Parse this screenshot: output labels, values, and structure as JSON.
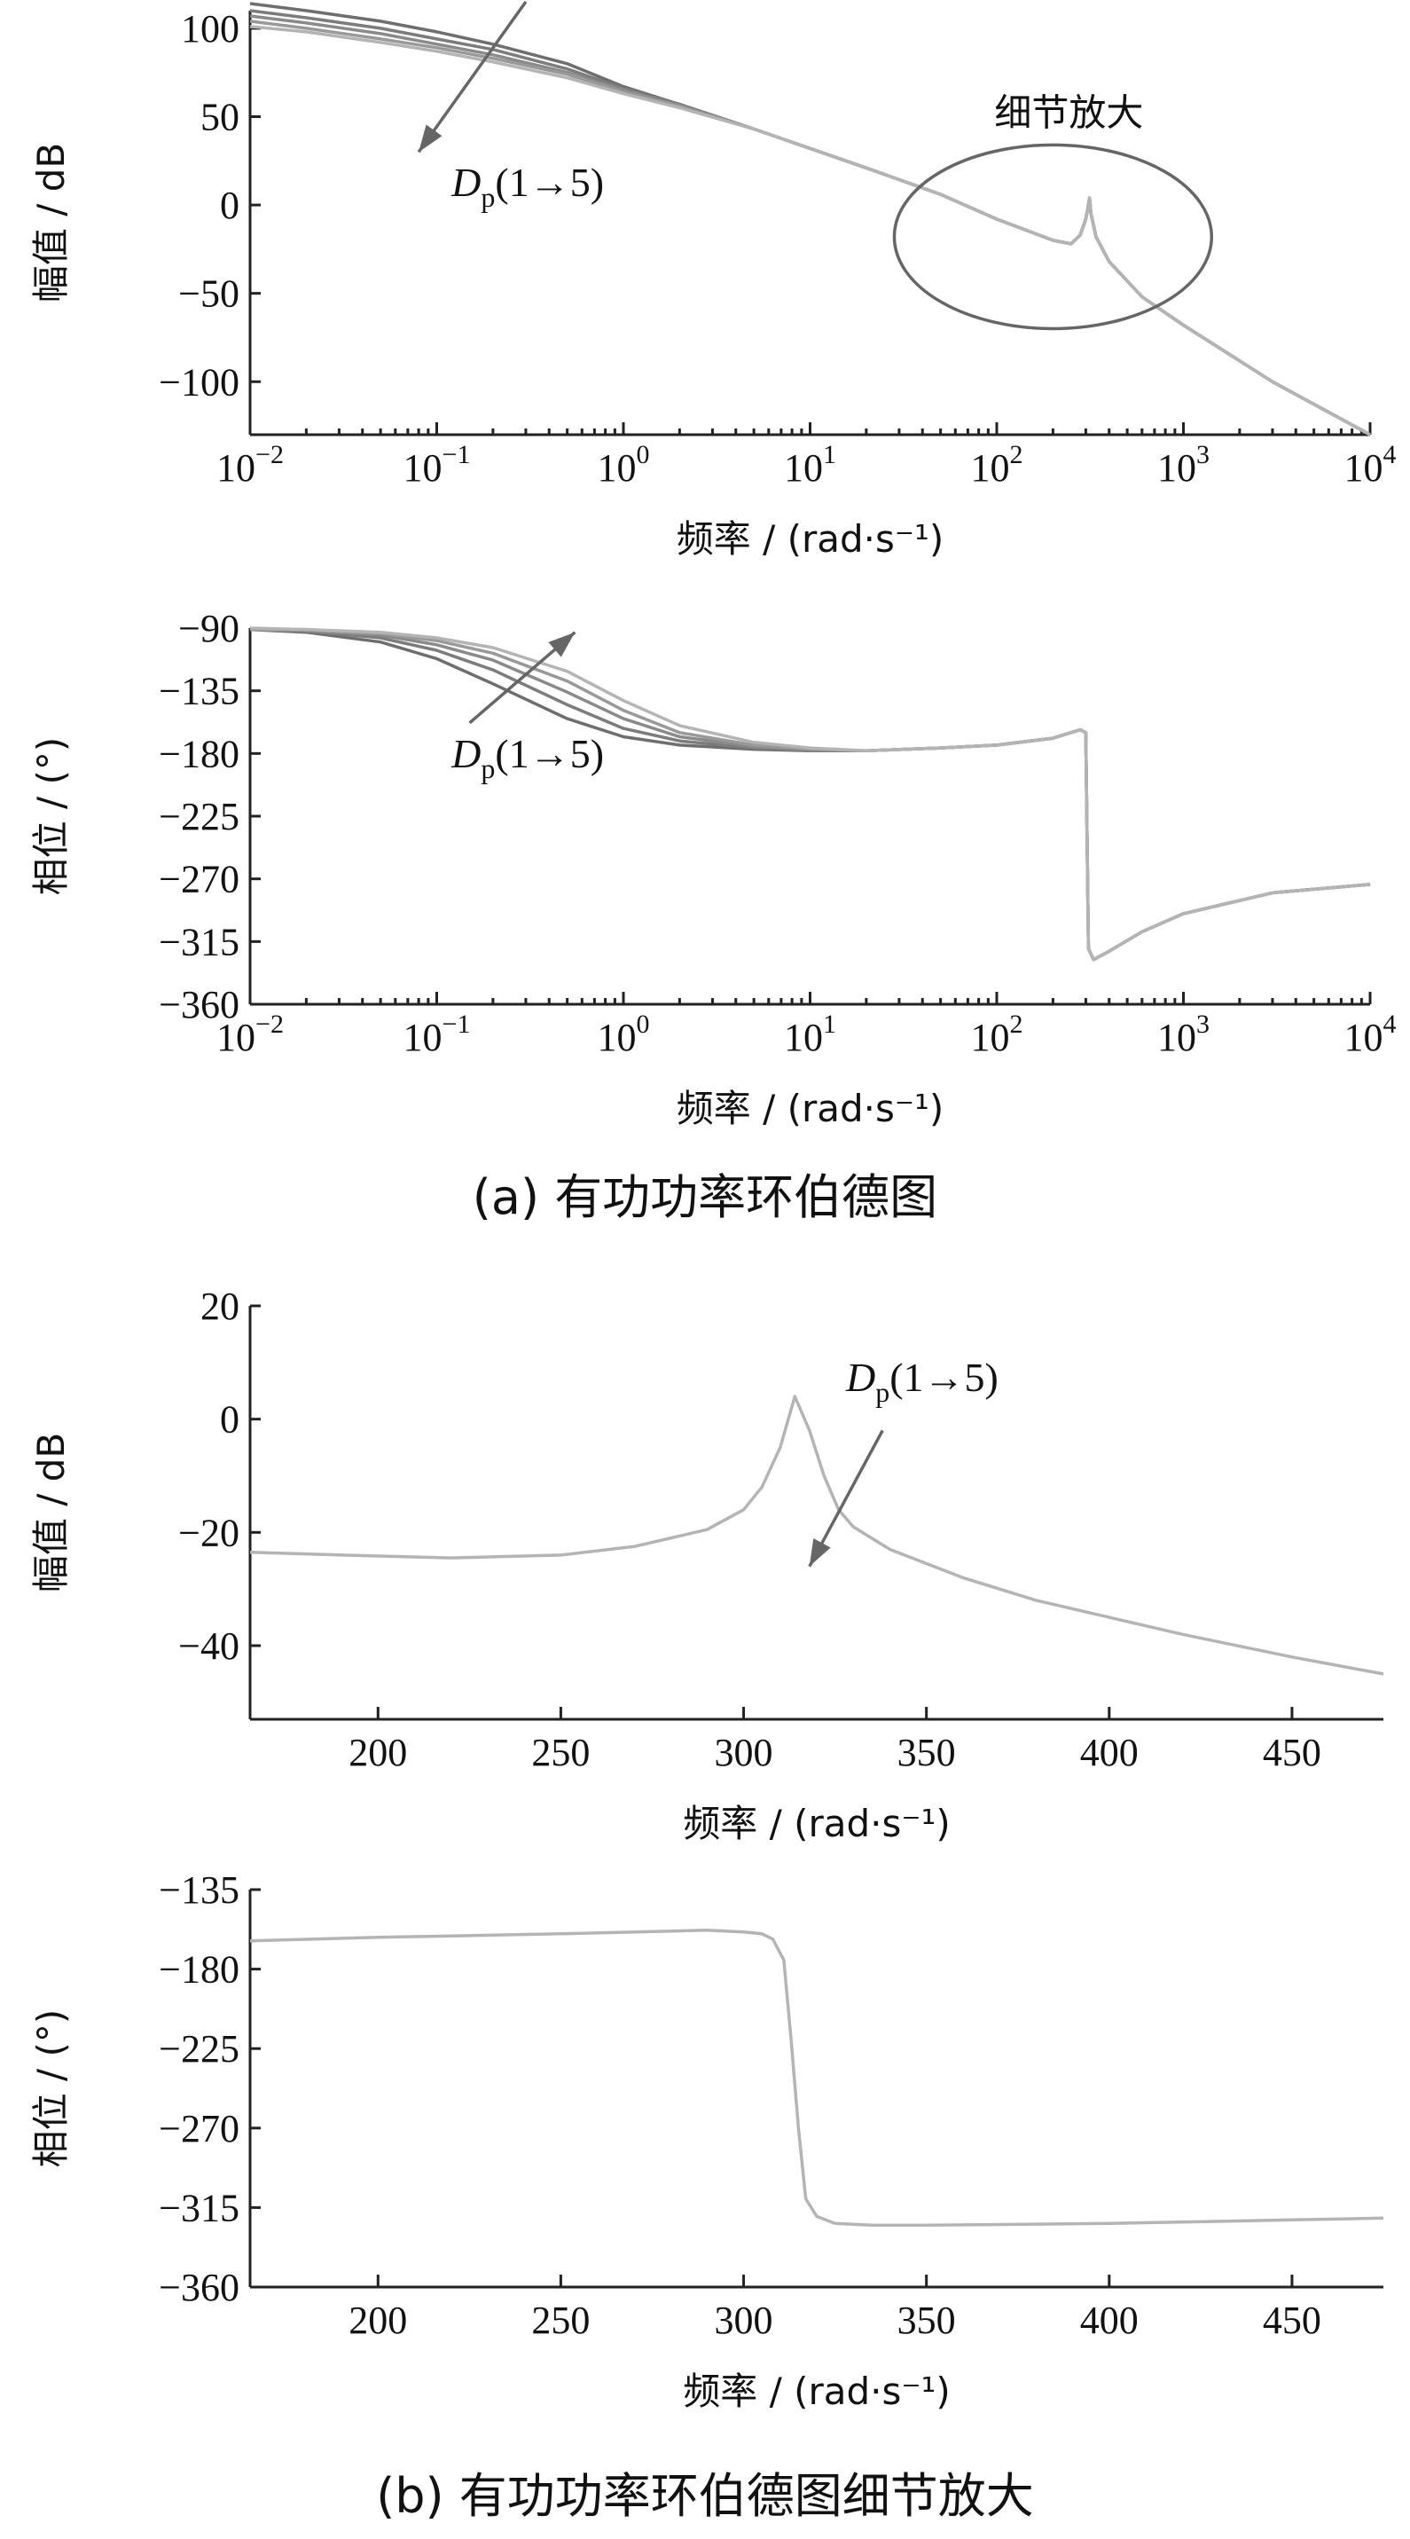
{
  "chart_data": [
    {
      "type": "line",
      "panel": "a",
      "subplot": "magnitude",
      "xscale": "log",
      "xlim": [
        0.01,
        10000
      ],
      "ylim": [
        -130,
        110
      ],
      "xlabel": "频率 / (rad·s⁻¹)",
      "ylabel": "幅值 / dB",
      "xticks": [
        0.01,
        0.1,
        1,
        10,
        100,
        1000,
        10000
      ],
      "xtick_labels": [
        {
          "base": "10",
          "exp": "−2"
        },
        {
          "base": "10",
          "exp": "−1"
        },
        {
          "base": "10",
          "exp": "0"
        },
        {
          "base": "10",
          "exp": "1"
        },
        {
          "base": "10",
          "exp": "2"
        },
        {
          "base": "10",
          "exp": "3"
        },
        {
          "base": "10",
          "exp": "4"
        }
      ],
      "yticks": [
        100,
        50,
        0,
        -50,
        -100
      ],
      "ytick_labels": [
        "100",
        "50",
        "0",
        "−50",
        "−100"
      ],
      "grid": false,
      "series": [
        {
          "color": "#6e6e6e",
          "x": [
            0.01,
            0.02,
            0.05,
            0.1,
            0.2,
            0.5,
            1,
            2,
            5,
            10,
            20,
            50,
            100,
            150,
            200,
            250,
            280,
            300,
            310,
            314,
            320,
            340,
            400,
            600,
            1000,
            3000,
            10000
          ],
          "y": [
            114,
            110,
            104,
            98,
            91,
            80,
            67,
            57,
            43,
            32,
            21,
            6,
            -8,
            -15,
            -20,
            -22,
            -17,
            -8,
            0,
            4,
            -5,
            -18,
            -32,
            -52,
            -68,
            -100,
            -130
          ]
        },
        {
          "color": "#7c7c7c",
          "x": [
            0.01,
            0.02,
            0.05,
            0.1,
            0.2,
            0.5,
            1,
            2,
            5,
            10,
            20,
            50,
            100,
            150,
            200,
            250,
            280,
            300,
            310,
            314,
            320,
            340,
            400,
            600,
            1000,
            3000,
            10000
          ],
          "y": [
            110,
            106,
            100,
            94,
            88,
            77,
            66,
            57,
            43,
            32,
            21,
            6,
            -8,
            -15,
            -20,
            -22,
            -17,
            -8,
            0,
            4,
            -5,
            -18,
            -32,
            -52,
            -68,
            -100,
            -130
          ]
        },
        {
          "color": "#8a8a8a",
          "x": [
            0.01,
            0.02,
            0.05,
            0.1,
            0.2,
            0.5,
            1,
            2,
            5,
            10,
            20,
            50,
            100,
            150,
            200,
            250,
            280,
            300,
            310,
            314,
            320,
            340,
            400,
            600,
            1000,
            3000,
            10000
          ],
          "y": [
            107,
            103,
            97,
            91,
            85,
            75,
            65,
            56,
            43,
            32,
            21,
            6,
            -8,
            -15,
            -20,
            -22,
            -17,
            -8,
            0,
            4,
            -5,
            -18,
            -32,
            -52,
            -68,
            -100,
            -130
          ]
        },
        {
          "color": "#999999",
          "x": [
            0.01,
            0.02,
            0.05,
            0.1,
            0.2,
            0.5,
            1,
            2,
            5,
            10,
            20,
            50,
            100,
            150,
            200,
            250,
            280,
            300,
            310,
            314,
            320,
            340,
            400,
            600,
            1000,
            3000,
            10000
          ],
          "y": [
            104,
            100,
            94,
            89,
            83,
            74,
            64,
            56,
            43,
            32,
            21,
            6,
            -8,
            -15,
            -20,
            -22,
            -17,
            -8,
            0,
            4,
            -5,
            -18,
            -32,
            -52,
            -68,
            -100,
            -130
          ]
        },
        {
          "color": "#b4b4b4",
          "x": [
            0.01,
            0.02,
            0.05,
            0.1,
            0.2,
            0.5,
            1,
            2,
            5,
            10,
            20,
            50,
            100,
            150,
            200,
            250,
            280,
            300,
            310,
            314,
            320,
            340,
            400,
            600,
            1000,
            3000,
            10000
          ],
          "y": [
            101,
            98,
            92,
            87,
            81,
            72,
            63,
            55,
            43,
            32,
            21,
            6,
            -8,
            -15,
            -20,
            -22,
            -17,
            -8,
            0,
            4,
            -5,
            -18,
            -32,
            -52,
            -68,
            -100,
            -130
          ]
        }
      ],
      "annotations": [
        {
          "text_main": "D",
          "text_sub": "p",
          "text_rest": "(1→5)",
          "at": [
            0.12,
            5
          ]
        },
        {
          "type": "arrow",
          "from": [
            0.3,
            115
          ],
          "to": [
            0.08,
            30
          ]
        },
        {
          "type": "ellipse",
          "label": "细节放大",
          "center": [
            200,
            -18
          ],
          "rx_decades": 0.85,
          "ry": 52
        }
      ]
    },
    {
      "type": "line",
      "panel": "a",
      "subplot": "phase",
      "xscale": "log",
      "xlim": [
        0.01,
        10000
      ],
      "ylim": [
        -360,
        -90
      ],
      "xlabel": "频率 / (rad·s⁻¹)",
      "ylabel": "相位 / (°)",
      "xticks": [
        0.01,
        0.1,
        1,
        10,
        100,
        1000,
        10000
      ],
      "xtick_labels": [
        {
          "base": "10",
          "exp": "−2"
        },
        {
          "base": "10",
          "exp": "−1"
        },
        {
          "base": "10",
          "exp": "0"
        },
        {
          "base": "10",
          "exp": "1"
        },
        {
          "base": "10",
          "exp": "2"
        },
        {
          "base": "10",
          "exp": "3"
        },
        {
          "base": "10",
          "exp": "4"
        }
      ],
      "yticks": [
        -90,
        -135,
        -180,
        -225,
        -270,
        -315,
        -360
      ],
      "ytick_labels": [
        "−90",
        "−135",
        "−180",
        "−225",
        "−270",
        "−315",
        "−360"
      ],
      "grid": false,
      "series": [
        {
          "color": "#6e6e6e",
          "x": [
            0.01,
            0.02,
            0.05,
            0.1,
            0.2,
            0.5,
            1,
            2,
            5,
            10,
            20,
            50,
            100,
            200,
            280,
            300,
            310,
            330,
            400,
            600,
            1000,
            3000,
            10000
          ],
          "y": [
            -91,
            -93,
            -100,
            -112,
            -130,
            -155,
            -168,
            -174,
            -177,
            -178,
            -178,
            -176,
            -174,
            -169,
            -163,
            -165,
            -320,
            -328,
            -322,
            -308,
            -295,
            -280,
            -274
          ]
        },
        {
          "color": "#7c7c7c",
          "x": [
            0.01,
            0.02,
            0.05,
            0.1,
            0.2,
            0.5,
            1,
            2,
            5,
            10,
            20,
            50,
            100,
            200,
            280,
            300,
            310,
            330,
            400,
            600,
            1000,
            3000,
            10000
          ],
          "y": [
            -91,
            -92,
            -97,
            -106,
            -120,
            -145,
            -162,
            -171,
            -176,
            -178,
            -178,
            -176,
            -174,
            -169,
            -163,
            -165,
            -320,
            -328,
            -322,
            -308,
            -295,
            -280,
            -274
          ]
        },
        {
          "color": "#8a8a8a",
          "x": [
            0.01,
            0.02,
            0.05,
            0.1,
            0.2,
            0.5,
            1,
            2,
            5,
            10,
            20,
            50,
            100,
            200,
            280,
            300,
            310,
            330,
            400,
            600,
            1000,
            3000,
            10000
          ],
          "y": [
            -91,
            -92,
            -95,
            -102,
            -113,
            -136,
            -155,
            -168,
            -175,
            -177,
            -178,
            -176,
            -174,
            -169,
            -163,
            -165,
            -320,
            -328,
            -322,
            -308,
            -295,
            -280,
            -274
          ]
        },
        {
          "color": "#999999",
          "x": [
            0.01,
            0.02,
            0.05,
            0.1,
            0.2,
            0.5,
            1,
            2,
            5,
            10,
            20,
            50,
            100,
            200,
            280,
            300,
            310,
            330,
            400,
            600,
            1000,
            3000,
            10000
          ],
          "y": [
            -91,
            -91,
            -94,
            -99,
            -108,
            -128,
            -149,
            -165,
            -174,
            -177,
            -178,
            -176,
            -174,
            -169,
            -163,
            -165,
            -320,
            -328,
            -322,
            -308,
            -295,
            -280,
            -274
          ]
        },
        {
          "color": "#b4b4b4",
          "x": [
            0.01,
            0.02,
            0.05,
            0.1,
            0.2,
            0.5,
            1,
            2,
            5,
            10,
            20,
            50,
            100,
            200,
            280,
            300,
            310,
            330,
            400,
            600,
            1000,
            3000,
            10000
          ],
          "y": [
            -90,
            -91,
            -93,
            -97,
            -104,
            -121,
            -142,
            -160,
            -172,
            -176,
            -178,
            -176,
            -174,
            -169,
            -163,
            -165,
            -320,
            -328,
            -322,
            -308,
            -295,
            -280,
            -274
          ]
        }
      ],
      "annotations": [
        {
          "text_main": "D",
          "text_sub": "p",
          "text_rest": "(1→5)",
          "at": [
            0.12,
            -190
          ]
        },
        {
          "type": "arrow",
          "from": [
            0.15,
            -158
          ],
          "to": [
            0.55,
            -93
          ]
        }
      ]
    },
    {
      "type": "line",
      "panel": "b",
      "subplot": "magnitude",
      "xscale": "linear",
      "xlim": [
        165,
        475
      ],
      "ylim": [
        -53,
        20
      ],
      "xlabel": "频率 / (rad·s⁻¹)",
      "ylabel": "幅值 / dB",
      "xticks": [
        200,
        250,
        300,
        350,
        400,
        450
      ],
      "xtick_labels": [
        "200",
        "250",
        "300",
        "350",
        "400",
        "450"
      ],
      "yticks": [
        20,
        0,
        -20,
        -40
      ],
      "ytick_labels": [
        "20",
        "0",
        "−20",
        "−40"
      ],
      "grid": false,
      "series": [
        {
          "color": "#b4b4b4",
          "x": [
            165,
            190,
            220,
            250,
            270,
            290,
            300,
            305,
            310,
            314,
            318,
            322,
            326,
            330,
            340,
            360,
            380,
            400,
            420,
            450,
            475
          ],
          "y": [
            -23.5,
            -24,
            -24.5,
            -24,
            -22.5,
            -19.5,
            -16,
            -12,
            -5,
            4,
            -2,
            -10,
            -16,
            -19,
            -23,
            -28,
            -32,
            -35,
            -38,
            -42,
            -45
          ]
        }
      ],
      "annotations": [
        {
          "text_main": "D",
          "text_sub": "p",
          "text_rest": "(1→5)",
          "at": [
            328,
            5
          ]
        },
        {
          "type": "arrow",
          "from": [
            338,
            -2
          ],
          "to": [
            318,
            -26
          ]
        }
      ]
    },
    {
      "type": "line",
      "panel": "b",
      "subplot": "phase",
      "xscale": "linear",
      "xlim": [
        165,
        475
      ],
      "ylim": [
        -360,
        -135
      ],
      "xlabel": "频率 / (rad·s⁻¹)",
      "ylabel": "相位 / (°)",
      "xticks": [
        200,
        250,
        300,
        350,
        400,
        450
      ],
      "xtick_labels": [
        "200",
        "250",
        "300",
        "350",
        "400",
        "450"
      ],
      "yticks": [
        -135,
        -180,
        -225,
        -270,
        -315,
        -360
      ],
      "ytick_labels": [
        "−135",
        "−180",
        "−225",
        "−270",
        "−315",
        "−360"
      ],
      "grid": false,
      "series": [
        {
          "color": "#b4b4b4",
          "x": [
            165,
            200,
            250,
            290,
            300,
            305,
            308,
            311,
            313,
            315,
            317,
            320,
            325,
            335,
            350,
            400,
            450,
            475
          ],
          "y": [
            -164,
            -162,
            -160,
            -158,
            -159,
            -160,
            -163,
            -175,
            -220,
            -270,
            -310,
            -320,
            -324,
            -325,
            -325,
            -324,
            -322,
            -321
          ]
        }
      ],
      "annotations": []
    }
  ],
  "captions": {
    "a": "(a)  有功功率环伯德图",
    "b": "(b)  有功功率环伯德图细节放大"
  }
}
